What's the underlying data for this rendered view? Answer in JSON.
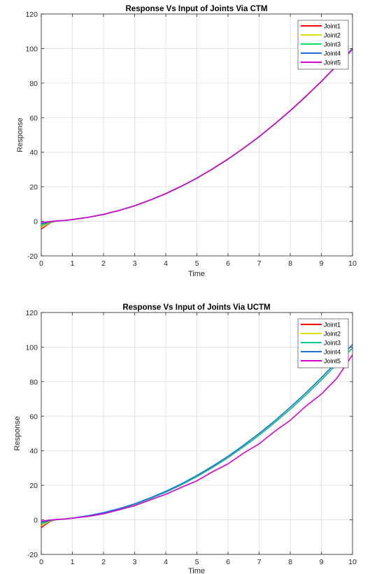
{
  "chart_data": [
    {
      "type": "line",
      "title": "Response Vs Input of Joints Via CTM",
      "xlabel": "Time",
      "ylabel": "Response",
      "xlim": [
        0,
        10
      ],
      "ylim": [
        -20,
        120
      ],
      "xticks": [
        0,
        1,
        2,
        3,
        4,
        5,
        6,
        7,
        8,
        9,
        10
      ],
      "yticks": [
        -20,
        0,
        20,
        40,
        60,
        80,
        100,
        120
      ],
      "grid": true,
      "legend_position": "top-right",
      "x": [
        0,
        0.1,
        0.2,
        0.3,
        0.4,
        0.5,
        0.75,
        1,
        1.5,
        2,
        2.5,
        3,
        3.5,
        4,
        4.5,
        5,
        5.5,
        6,
        6.5,
        7,
        7.5,
        8,
        8.5,
        9,
        9.5,
        10
      ],
      "series": [
        {
          "name": "Joint1",
          "color": "#ff0000",
          "values": [
            -4.5,
            -3.2,
            -1.8,
            -0.8,
            -0.2,
            0.1,
            0.5,
            1.0,
            2.3,
            4.0,
            6.3,
            9.0,
            12.3,
            16.0,
            20.3,
            25.0,
            30.3,
            36.0,
            42.3,
            49.0,
            56.3,
            64.0,
            72.3,
            81.0,
            90.3,
            100.0
          ]
        },
        {
          "name": "Joint2",
          "color": "#e0e000",
          "values": [
            -3.5,
            -2.5,
            -1.4,
            -0.6,
            -0.1,
            0.1,
            0.5,
            1.0,
            2.3,
            4.0,
            6.3,
            9.0,
            12.3,
            16.0,
            20.3,
            25.0,
            30.3,
            36.0,
            42.3,
            49.0,
            56.3,
            64.0,
            72.3,
            81.0,
            90.3,
            100.0
          ]
        },
        {
          "name": "Joint3",
          "color": "#00e060",
          "values": [
            -2.5,
            -1.8,
            -1.0,
            -0.4,
            0.0,
            0.15,
            0.5,
            1.0,
            2.3,
            4.0,
            6.3,
            9.0,
            12.3,
            16.0,
            20.3,
            25.0,
            30.3,
            36.0,
            42.3,
            49.0,
            56.3,
            64.0,
            72.3,
            81.0,
            90.3,
            100.0
          ]
        },
        {
          "name": "Joint4",
          "color": "#1e6fd9",
          "values": [
            -1.5,
            -1.1,
            -0.6,
            -0.2,
            0.05,
            0.2,
            0.5,
            1.0,
            2.3,
            4.0,
            6.3,
            9.0,
            12.3,
            16.0,
            20.3,
            25.0,
            30.3,
            36.0,
            42.3,
            49.0,
            56.3,
            64.0,
            72.3,
            81.0,
            90.3,
            100.0
          ]
        },
        {
          "name": "Joint5",
          "color": "#d500d5",
          "values": [
            -0.8,
            -0.6,
            -0.3,
            -0.1,
            0.1,
            0.2,
            0.5,
            1.0,
            2.3,
            4.0,
            6.3,
            9.0,
            12.3,
            16.0,
            20.3,
            25.0,
            30.3,
            36.0,
            42.3,
            49.0,
            56.3,
            64.0,
            72.3,
            81.0,
            90.3,
            99.5
          ]
        }
      ]
    },
    {
      "type": "line",
      "title": "Response Vs Input of Joints Via UCTM",
      "xlabel": "Time",
      "ylabel": "Response",
      "xlim": [
        0,
        10
      ],
      "ylim": [
        -20,
        120
      ],
      "xticks": [
        0,
        1,
        2,
        3,
        4,
        5,
        6,
        7,
        8,
        9,
        10
      ],
      "yticks": [
        -20,
        0,
        20,
        40,
        60,
        80,
        100,
        120
      ],
      "grid": true,
      "legend_position": "top-right",
      "x": [
        0,
        0.1,
        0.2,
        0.3,
        0.4,
        0.5,
        0.75,
        1,
        1.5,
        2,
        2.5,
        3,
        3.5,
        4,
        4.5,
        5,
        5.5,
        6,
        6.5,
        7,
        7.5,
        8,
        8.5,
        9,
        9.5,
        10
      ],
      "series": [
        {
          "name": "Joint1",
          "color": "#ff0000",
          "values": [
            -4.5,
            -3.2,
            -1.8,
            -0.8,
            -0.2,
            0.1,
            0.5,
            1.0,
            2.3,
            4.0,
            6.3,
            9.0,
            12.3,
            16.0,
            20.3,
            25.0,
            30.3,
            36.0,
            42.3,
            49.0,
            56.3,
            64.0,
            72.3,
            81.0,
            90.3,
            99.5
          ]
        },
        {
          "name": "Joint2",
          "color": "#e0e000",
          "values": [
            -3.5,
            -2.5,
            -1.4,
            -0.6,
            -0.1,
            0.1,
            0.5,
            1.0,
            2.3,
            4.0,
            6.3,
            9.0,
            12.3,
            16.0,
            20.3,
            25.0,
            30.3,
            36.0,
            42.3,
            49.0,
            56.3,
            64.0,
            72.3,
            81.0,
            90.3,
            99.5
          ]
        },
        {
          "name": "Joint3",
          "color": "#00c8a0",
          "values": [
            -2.5,
            -1.8,
            -1.0,
            -0.4,
            0.0,
            0.15,
            0.5,
            1.0,
            2.3,
            4.0,
            6.3,
            9.0,
            12.3,
            16.0,
            20.3,
            25.0,
            30.3,
            36.0,
            42.3,
            49.0,
            56.3,
            64.0,
            72.3,
            81.0,
            90.3,
            99.5
          ]
        },
        {
          "name": "Joint4",
          "color": "#1e6fd9",
          "values": [
            -1.5,
            -1.1,
            -0.6,
            -0.2,
            0.05,
            0.2,
            0.5,
            1.0,
            2.4,
            4.2,
            6.5,
            9.3,
            12.7,
            16.5,
            20.8,
            25.7,
            31.0,
            36.8,
            43.2,
            50.0,
            57.3,
            65.2,
            73.5,
            82.3,
            91.6,
            101.5
          ]
        },
        {
          "name": "Joint5",
          "color": "#d500d5",
          "values": [
            -0.8,
            -0.6,
            -0.3,
            -0.1,
            0.1,
            0.2,
            0.5,
            0.9,
            2.0,
            3.5,
            5.8,
            8.2,
            11.5,
            14.8,
            18.8,
            22.6,
            27.8,
            32.4,
            38.6,
            44.0,
            51.2,
            57.6,
            65.8,
            72.8,
            82.0,
            95.5
          ]
        }
      ]
    }
  ]
}
